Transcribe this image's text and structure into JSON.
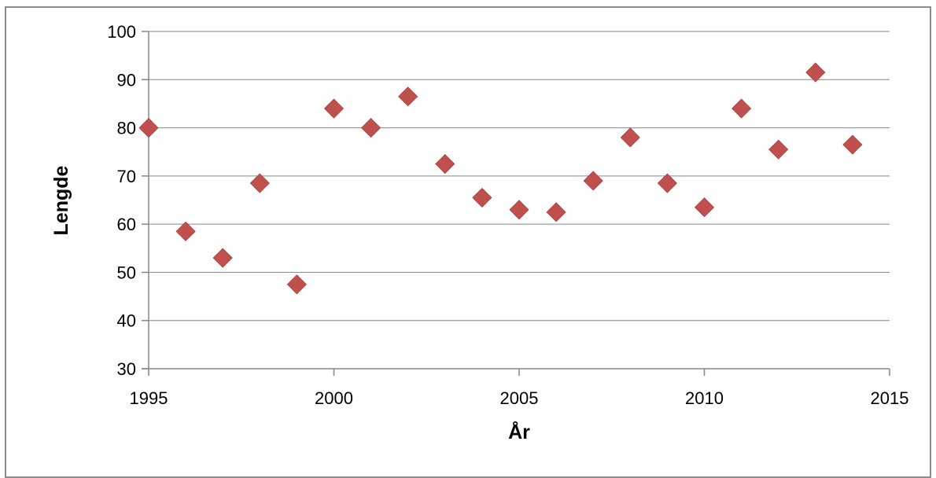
{
  "chart_data": {
    "type": "scatter",
    "title": "",
    "xlabel": "År",
    "ylabel": "Lengde",
    "xlim": [
      1995,
      2015
    ],
    "ylim": [
      30,
      100
    ],
    "x_ticks": [
      "1995",
      "2000",
      "2005",
      "2010",
      "2015"
    ],
    "y_ticks": [
      "30",
      "40",
      "50",
      "60",
      "70",
      "80",
      "90",
      "100"
    ],
    "grid": true,
    "legend": "none",
    "marker": "diamond",
    "marker_color": "#C0504D",
    "series": [
      {
        "x": [
          1995,
          1996,
          1997,
          1998,
          1999,
          2000,
          2001,
          2002,
          2003,
          2004,
          2005,
          2006,
          2007,
          2008,
          2009,
          2010,
          2011,
          2012,
          2013,
          2014
        ],
        "y": [
          80,
          58.5,
          53,
          68.5,
          47.5,
          84,
          80,
          86.5,
          72.5,
          65.5,
          63,
          62.5,
          69,
          78,
          68.5,
          63.5,
          84,
          75.5,
          91.5,
          76.5
        ]
      }
    ]
  }
}
